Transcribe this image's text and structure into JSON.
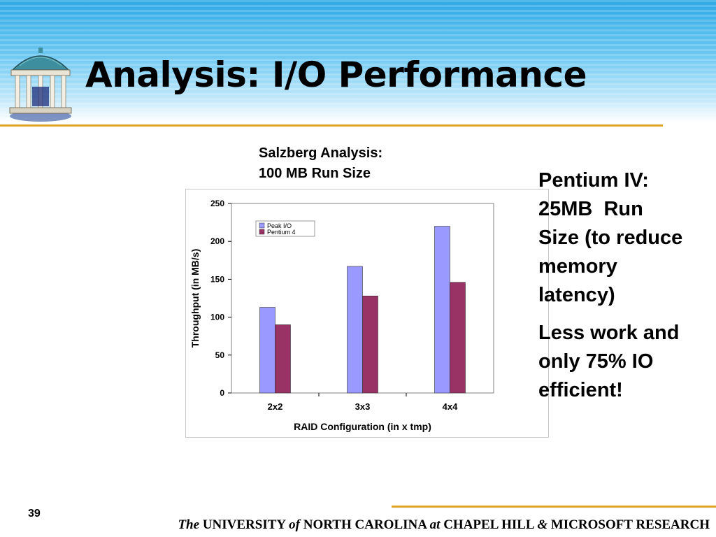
{
  "slide": {
    "title": "Analysis: I/O Performance",
    "page_number": "39"
  },
  "chart_caption": {
    "line1": "Salzberg Analysis:",
    "line2": "100 MB Run Size"
  },
  "bullets": {
    "b1_line1": "Pentium IV:",
    "b1_line2": "25MB  Run",
    "b1_line3": "Size (to reduce",
    "b1_line4": "memory",
    "b1_line5": "latency)",
    "b2_line1": "Less work and",
    "b2_line2": "only 75% IO",
    "b2_line3": "efficient!"
  },
  "footer": {
    "the": "The",
    "university": "UNIVERSITY",
    "of": "of",
    "north_carolina": "NORTH CAROLINA",
    "at": "at",
    "chapel_hill": "CHAPEL HILL",
    "amp": "&",
    "microsoft": "MICROSOFT RESEARCH"
  },
  "colors": {
    "peak_io": "#9999ff",
    "pentium4": "#993366",
    "accent_rule": "#e1a328"
  },
  "chart_data": {
    "type": "bar",
    "categories": [
      "2x2",
      "3x3",
      "4x4"
    ],
    "series": [
      {
        "name": "Peak I/O",
        "values": [
          113,
          167,
          220
        ]
      },
      {
        "name": "Pentium 4",
        "values": [
          90,
          128,
          146
        ]
      }
    ],
    "xlabel": "RAID Configuration (in x tmp)",
    "ylabel": "Throughput (in MB/s)",
    "ylim": [
      0,
      250
    ],
    "yticks": [
      0,
      50,
      100,
      150,
      200,
      250
    ],
    "legend_position": "top-left",
    "grid": false
  }
}
